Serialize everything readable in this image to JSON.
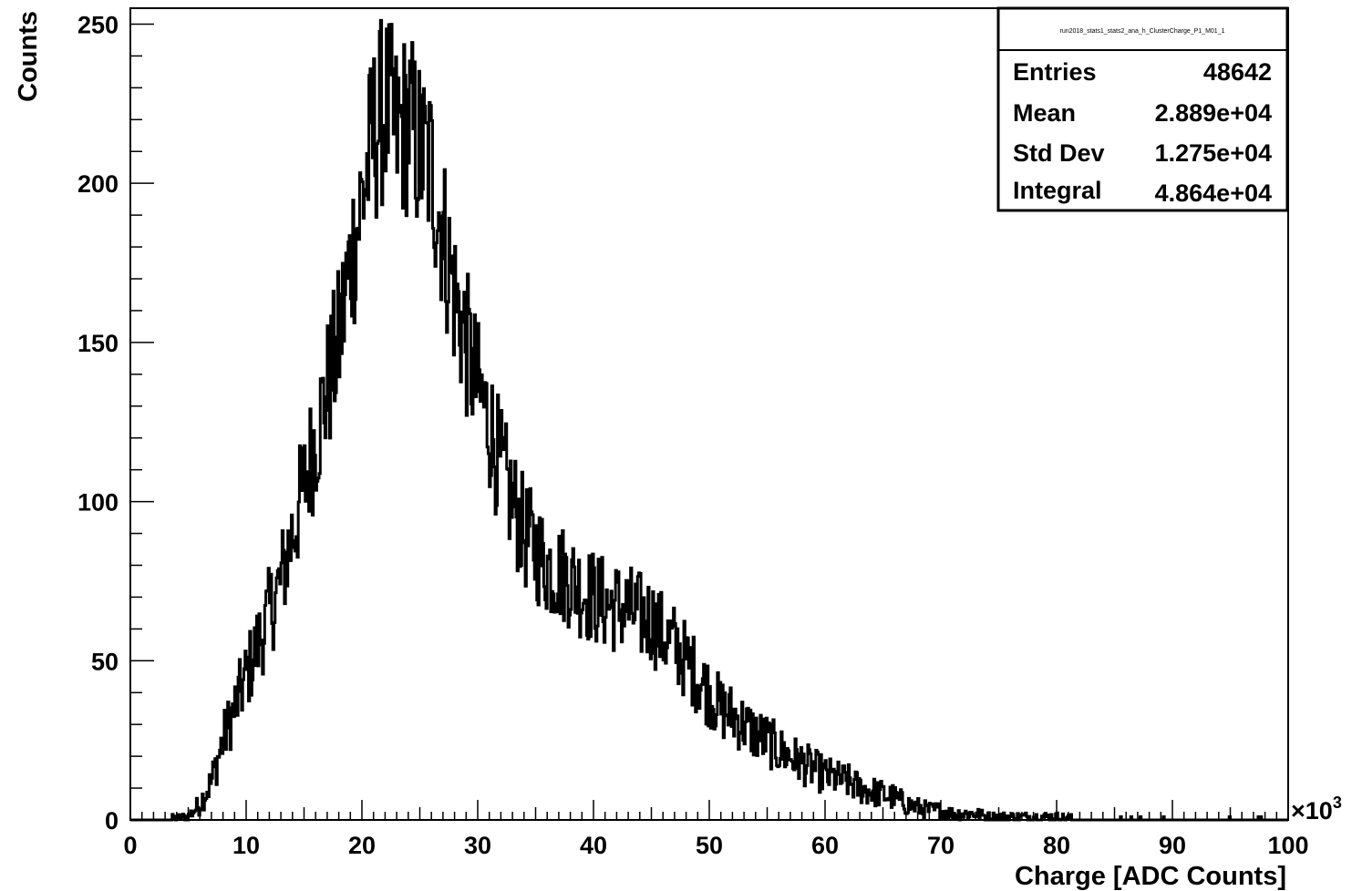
{
  "chart_data": {
    "type": "bar",
    "xlabel": "Charge [ADC Counts]",
    "ylabel": "Counts",
    "x_exponent_label": "×10",
    "x_exponent_power": "3",
    "xlim": [
      0,
      100
    ],
    "ylim": [
      0,
      255
    ],
    "x_ticks": [
      "0",
      "10",
      "20",
      "30",
      "40",
      "50",
      "60",
      "70",
      "80",
      "90",
      "100"
    ],
    "y_ticks": [
      "0",
      "50",
      "100",
      "150",
      "200",
      "250"
    ],
    "grid": false,
    "legend": "none",
    "histogram_profile": {
      "x": [
        0,
        3,
        5,
        6,
        7,
        8,
        9,
        10,
        11,
        12,
        13,
        14,
        15,
        16,
        17,
        18,
        19,
        20,
        21,
        22,
        23,
        24,
        25,
        26,
        27,
        28,
        29,
        30,
        31,
        32,
        33,
        34,
        35,
        36,
        37,
        38,
        39,
        40,
        41,
        42,
        43,
        44,
        45,
        46,
        47,
        48,
        49,
        50,
        51,
        52,
        53,
        54,
        55,
        56,
        57,
        58,
        59,
        60,
        61,
        62,
        63,
        64,
        65,
        66,
        67,
        68,
        69,
        70,
        71,
        72,
        73,
        74,
        75,
        76,
        78,
        80,
        82,
        85,
        90,
        95,
        100
      ],
      "y": [
        0,
        0,
        1,
        5,
        12,
        25,
        35,
        45,
        55,
        65,
        75,
        90,
        105,
        120,
        135,
        150,
        175,
        195,
        215,
        225,
        215,
        220,
        210,
        205,
        185,
        165,
        150,
        135,
        125,
        110,
        100,
        90,
        85,
        80,
        78,
        76,
        72,
        70,
        68,
        67,
        66,
        64,
        63,
        58,
        55,
        50,
        45,
        40,
        35,
        33,
        30,
        27,
        25,
        22,
        20,
        18,
        16,
        14,
        13,
        12,
        10,
        9,
        8,
        7,
        5,
        4,
        3,
        3,
        2,
        2,
        2,
        1,
        1,
        1,
        1,
        1,
        0,
        0,
        0,
        0,
        0
      ]
    },
    "noise_amplitude": 0.1
  },
  "stats_box": {
    "title": "run2018_stats1_stats2_ana_h_ClusterCharge_P1_M01_1",
    "rows": [
      {
        "label": "Entries",
        "value": "48642"
      },
      {
        "label": "Mean",
        "value": "2.889e+04"
      },
      {
        "label": "Std Dev",
        "value": "1.275e+04"
      },
      {
        "label": "Integral",
        "value": "4.864e+04"
      }
    ]
  }
}
